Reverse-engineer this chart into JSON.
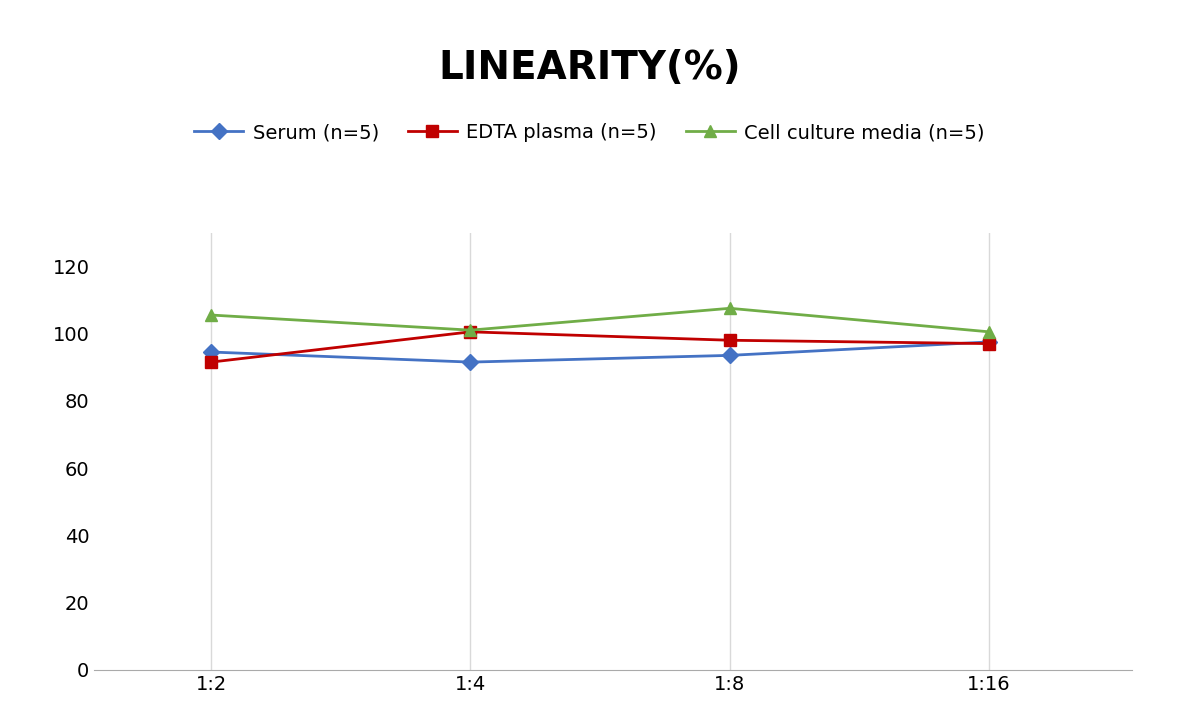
{
  "title": "LINEARITY(%)",
  "x_labels": [
    "1:2",
    "1:4",
    "1:8",
    "1:16"
  ],
  "x_positions": [
    0,
    1,
    2,
    3
  ],
  "series": [
    {
      "label": "Serum (n=5)",
      "values": [
        94.5,
        91.5,
        93.5,
        97.5
      ],
      "color": "#4472C4",
      "marker": "D",
      "markersize": 8
    },
    {
      "label": "EDTA plasma (n=5)",
      "values": [
        91.5,
        100.5,
        98.0,
        97.0
      ],
      "color": "#C00000",
      "marker": "s",
      "markersize": 8
    },
    {
      "label": "Cell culture media (n=5)",
      "values": [
        105.5,
        101.0,
        107.5,
        100.5
      ],
      "color": "#70AD47",
      "marker": "^",
      "markersize": 8
    }
  ],
  "ylim": [
    0,
    130
  ],
  "yticks": [
    0,
    20,
    40,
    60,
    80,
    100,
    120
  ],
  "grid_color": "#D9D9D9",
  "background_color": "#FFFFFF",
  "title_fontsize": 28,
  "legend_fontsize": 14,
  "tick_fontsize": 14
}
